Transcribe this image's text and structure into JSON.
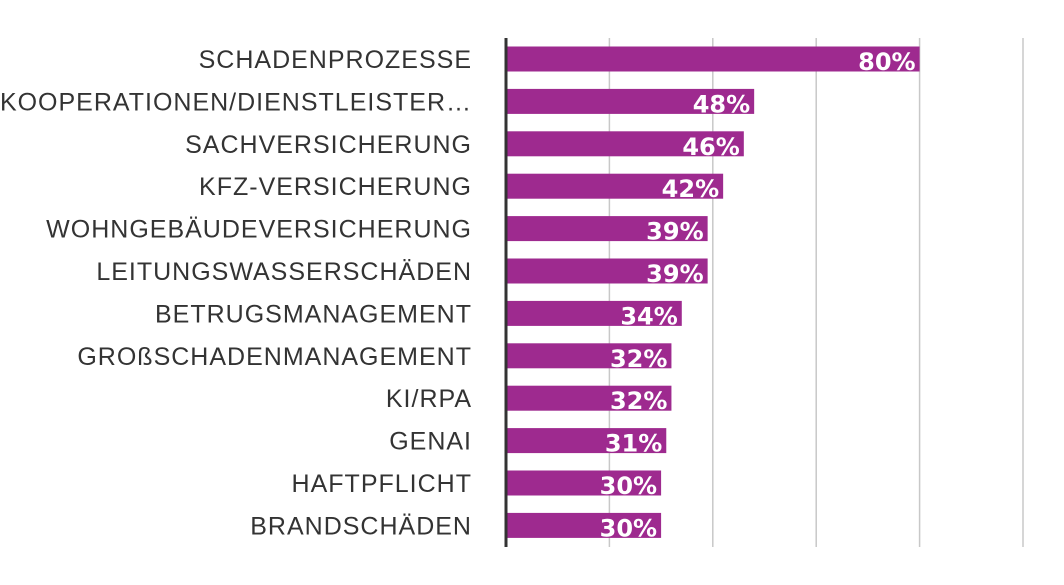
{
  "chart_data": {
    "type": "bar",
    "orientation": "horizontal",
    "categories": [
      "SCHADENPROZESSE",
      "KOOPERATIONEN/DIENSTLEISTER…",
      "SACHVERSICHERUNG",
      "KFZ-VERSICHERUNG",
      "WOHNGEBÄUDEVERSICHERUNG",
      "LEITUNGSWASSERSCHÄDEN",
      "BETRUGSMANAGEMENT",
      "GROßSCHADENMANAGEMENT",
      "KI/RPA",
      "GENAI",
      "HAFTPFLICHT",
      "BRANDSCHÄDEN"
    ],
    "values": [
      80,
      48,
      46,
      42,
      39,
      39,
      34,
      32,
      32,
      31,
      30,
      30
    ],
    "value_labels": [
      "80%",
      "48%",
      "46%",
      "42%",
      "39%",
      "39%",
      "34%",
      "32%",
      "32%",
      "31%",
      "30%",
      "30%"
    ],
    "xlim": [
      0,
      100
    ],
    "grid_ticks": [
      20,
      40,
      60,
      80,
      100
    ],
    "grid": true,
    "legend": "none",
    "bar_color": "#9e2a8f",
    "title": "",
    "xlabel": "",
    "ylabel": ""
  }
}
